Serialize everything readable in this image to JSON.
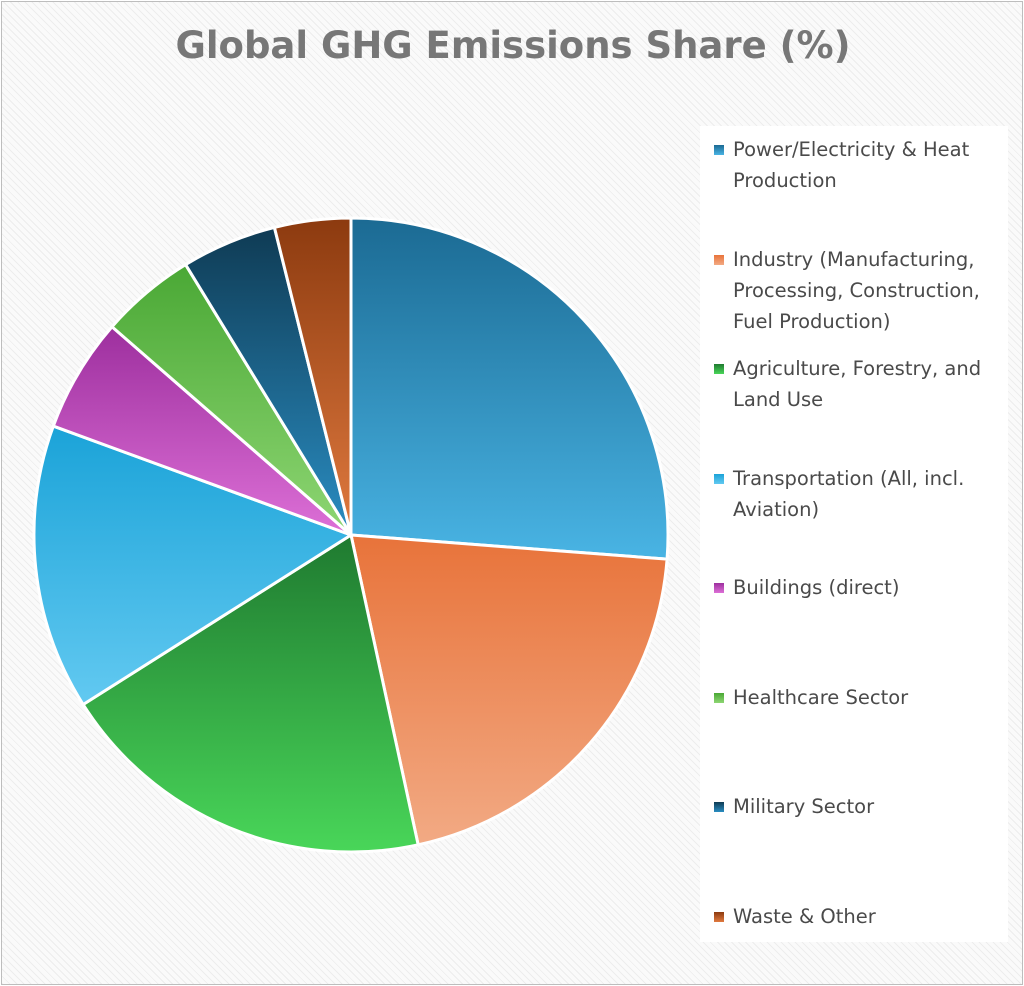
{
  "chart_data": {
    "type": "pie",
    "title": "Global GHG Emissions Share (%)",
    "categories": [
      "Power/Electricity & Heat Production",
      "Industry (Manufacturing, Processing, Construction, Fuel Production)",
      "Agriculture, Forestry, and Land Use",
      "Transportation (All, incl. Aviation)",
      "Buildings (direct)",
      "Healthcare Sector",
      "Military Sector",
      "Waste & Other"
    ],
    "values": [
      27,
      21,
      20,
      15,
      6,
      5,
      5,
      4
    ],
    "colors": [
      [
        "#1b6a93",
        "#49b4e4"
      ],
      [
        "#e8733a",
        "#f2aa84"
      ],
      [
        "#1f7a30",
        "#49d659"
      ],
      [
        "#1ba3d8",
        "#62c9f1"
      ],
      [
        "#9d2f9e",
        "#dd70d7"
      ],
      [
        "#4aa835",
        "#8ed673"
      ],
      [
        "#0f3b54",
        "#2a8dc2"
      ],
      [
        "#8c3a0f",
        "#e07a3f"
      ]
    ],
    "legend": "right",
    "grid": false
  }
}
